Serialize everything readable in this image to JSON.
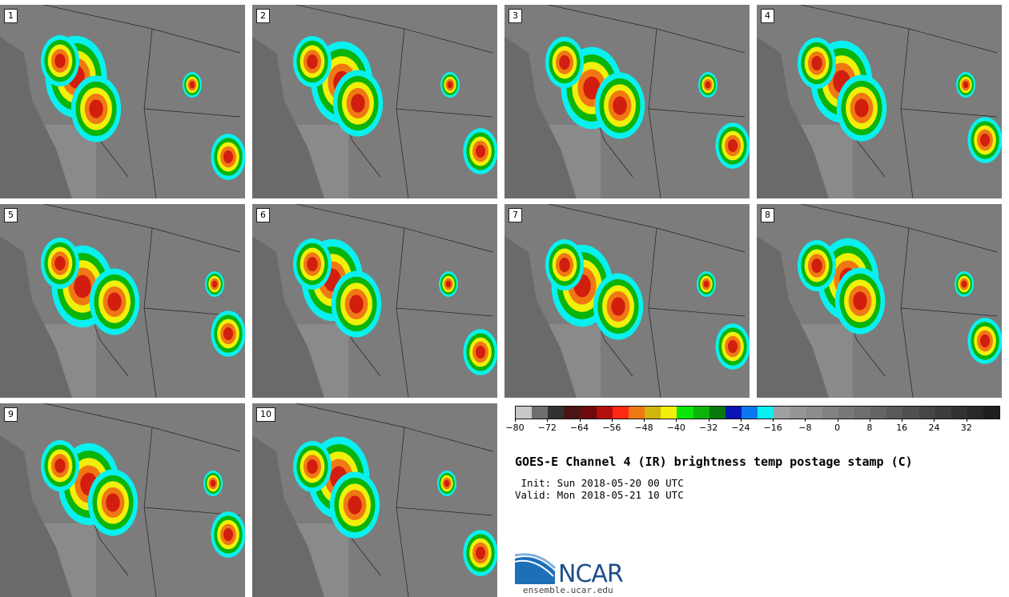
{
  "panels": [
    {
      "label": "1"
    },
    {
      "label": "2"
    },
    {
      "label": "3"
    },
    {
      "label": "4"
    },
    {
      "label": "5"
    },
    {
      "label": "6"
    },
    {
      "label": "7"
    },
    {
      "label": "8"
    },
    {
      "label": "9"
    },
    {
      "label": "10"
    }
  ],
  "colorbar": {
    "colors": [
      "#c8c8c8",
      "#6e6e6e",
      "#323232",
      "#4a1414",
      "#6e0a0a",
      "#b40f0f",
      "#ff2814",
      "#f07814",
      "#d2b40f",
      "#f0f00a",
      "#0ae60a",
      "#0ab40a",
      "#0a780a",
      "#0a14b4",
      "#0a78f0",
      "#0af0f0",
      "#a0a0a0",
      "#969696",
      "#8c8c8c",
      "#828282",
      "#787878",
      "#6e6e6e",
      "#646464",
      "#5a5a5a",
      "#505050",
      "#464646",
      "#3c3c3c",
      "#323232",
      "#282828",
      "#1e1e1e"
    ],
    "ticks": [
      "−80",
      "−72",
      "−64",
      "−56",
      "−48",
      "−40",
      "−32",
      "−24",
      "−16",
      "−8",
      "0",
      "8",
      "16",
      "24",
      "32"
    ]
  },
  "title": "GOES-E Channel 4 (IR) brightness temp postage stamp (C)",
  "init": " Init: Sun 2018-05-20 00 UTC",
  "valid": "Valid: Mon 2018-05-21 10 UTC",
  "logo_text": "NCAR",
  "url": "ensemble.ucar.edu"
}
